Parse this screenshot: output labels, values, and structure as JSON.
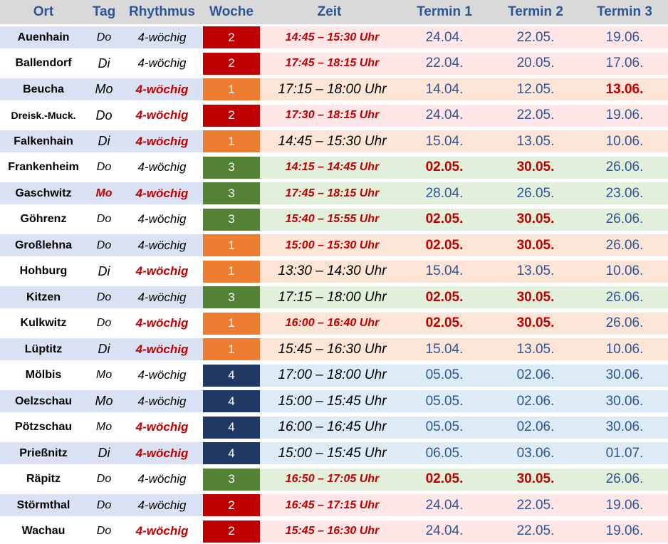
{
  "colors": {
    "header_bg": "#d9d9d9",
    "header_text": "#2e5496",
    "label_bg_blue": "#d9e1f2",
    "label_bg_white": "#ffffff",
    "woche_1": "#ed7d31",
    "woche_2": "#c00000",
    "woche_3": "#548235",
    "woche_4": "#1f3864",
    "row_1": "#fce4d6",
    "row_2": "#ffe6e6",
    "row_3": "#e2efda",
    "row_4": "#ddebf7",
    "accent_red": "#c00000",
    "date_blue": "#2e5496"
  },
  "header": {
    "ort": "Ort",
    "tag": "Tag",
    "rhythmus": "Rhythmus",
    "woche": "Woche",
    "zeit": "Zeit",
    "termin1": "Termin 1",
    "termin2": "Termin 2",
    "termin3": "Termin 3"
  },
  "rows": [
    {
      "ort": "Auenhain",
      "tag": "Do",
      "rhythmus": "4-wöchig",
      "woche": "2",
      "zeit": "14:45 – 15:30 Uhr",
      "t1": "24.04.",
      "t2": "22.05.",
      "t3": "19.06."
    },
    {
      "ort": "Ballendorf",
      "tag": "Di",
      "rhythmus": "4-wöchig",
      "woche": "2",
      "zeit": "17:45 – 18:15 Uhr",
      "t1": "22.04.",
      "t2": "20.05.",
      "t3": "17.06."
    },
    {
      "ort": "Beucha",
      "tag": "Mo",
      "rhythmus": "4-wöchig",
      "woche": "1",
      "zeit": "17:15 – 18:00 Uhr",
      "t1": "14.04.",
      "t2": "12.05.",
      "t3": "13.06."
    },
    {
      "ort": "Dreisk.-Muck.",
      "tag": "Do",
      "rhythmus": "4-wöchig",
      "woche": "2",
      "zeit": "17:30 – 18:15 Uhr",
      "t1": "24.04.",
      "t2": "22.05.",
      "t3": "19.06."
    },
    {
      "ort": "Falkenhain",
      "tag": "Di",
      "rhythmus": "4-wöchig",
      "woche": "1",
      "zeit": "14:45 – 15:30 Uhr",
      "t1": "15.04.",
      "t2": "13.05.",
      "t3": "10.06."
    },
    {
      "ort": "Frankenheim",
      "tag": "Do",
      "rhythmus": "4-wöchig",
      "woche": "3",
      "zeit": "14:15 – 14:45 Uhr",
      "t1": "02.05.",
      "t2": "30.05.",
      "t3": "26.06."
    },
    {
      "ort": "Gaschwitz",
      "tag": "Mo",
      "rhythmus": "4-wöchig",
      "woche": "3",
      "zeit": "17:45 – 18:15 Uhr",
      "t1": "28.04.",
      "t2": "26.05.",
      "t3": "23.06."
    },
    {
      "ort": "Göhrenz",
      "tag": "Do",
      "rhythmus": "4-wöchig",
      "woche": "3",
      "zeit": "15:40 – 15:55 Uhr",
      "t1": "02.05.",
      "t2": "30.05.",
      "t3": "26.06."
    },
    {
      "ort": "Großlehna",
      "tag": "Do",
      "rhythmus": "4-wöchig",
      "woche": "1",
      "zeit": "15:00 – 15:30 Uhr",
      "t1": "02.05.",
      "t2": "30.05.",
      "t3": "26.06."
    },
    {
      "ort": "Hohburg",
      "tag": "Di",
      "rhythmus": "4-wöchig",
      "woche": "1",
      "zeit": "13:30 – 14:30 Uhr",
      "t1": "15.04.",
      "t2": "13.05.",
      "t3": "10.06."
    },
    {
      "ort": "Kitzen",
      "tag": "Do",
      "rhythmus": "4-wöchig",
      "woche": "3",
      "zeit": "17:15 – 18:00 Uhr",
      "t1": "02.05.",
      "t2": "30.05.",
      "t3": "26.06."
    },
    {
      "ort": "Kulkwitz",
      "tag": "Do",
      "rhythmus": "4-wöchig",
      "woche": "1",
      "zeit": "16:00 – 16:40 Uhr",
      "t1": "02.05.",
      "t2": "30.05.",
      "t3": "26.06."
    },
    {
      "ort": "Lüptitz",
      "tag": "Di",
      "rhythmus": "4-wöchig",
      "woche": "1",
      "zeit": "15:45 – 16:30 Uhr",
      "t1": "15.04.",
      "t2": "13.05.",
      "t3": "10.06."
    },
    {
      "ort": "Mölbis",
      "tag": "Mo",
      "rhythmus": "4-wöchig",
      "woche": "4",
      "zeit": "17:00 – 18:00 Uhr",
      "t1": "05.05.",
      "t2": "02.06.",
      "t3": "30.06."
    },
    {
      "ort": "Oelzschau",
      "tag": "Mo",
      "rhythmus": "4-wöchig",
      "woche": "4",
      "zeit": "15:00 – 15:45 Uhr",
      "t1": "05.05.",
      "t2": "02.06.",
      "t3": "30.06."
    },
    {
      "ort": "Pötzschau",
      "tag": "Mo",
      "rhythmus": "4-wöchig",
      "woche": "4",
      "zeit": "16:00 – 16:45 Uhr",
      "t1": "05.05.",
      "t2": "02.06.",
      "t3": "30.06."
    },
    {
      "ort": "Prießnitz",
      "tag": "Di",
      "rhythmus": "4-wöchig",
      "woche": "4",
      "zeit": "15:00 – 15:45 Uhr",
      "t1": "06.05.",
      "t2": "03.06.",
      "t3": "01.07."
    },
    {
      "ort": "Räpitz",
      "tag": "Do",
      "rhythmus": "4-wöchig",
      "woche": "3",
      "zeit": "16:50 – 17:05 Uhr",
      "t1": "02.05.",
      "t2": "30.05.",
      "t3": "26.06."
    },
    {
      "ort": "Störmthal",
      "tag": "Do",
      "rhythmus": "4-wöchig",
      "woche": "2",
      "zeit": "16:45 – 17:15 Uhr",
      "t1": "24.04.",
      "t2": "22.05.",
      "t3": "19.06."
    },
    {
      "ort": "Wachau",
      "tag": "Do",
      "rhythmus": "4-wöchig",
      "woche": "2",
      "zeit": "15:45 – 16:30 Uhr",
      "t1": "24.04.",
      "t2": "22.05.",
      "t3": "19.06."
    }
  ]
}
